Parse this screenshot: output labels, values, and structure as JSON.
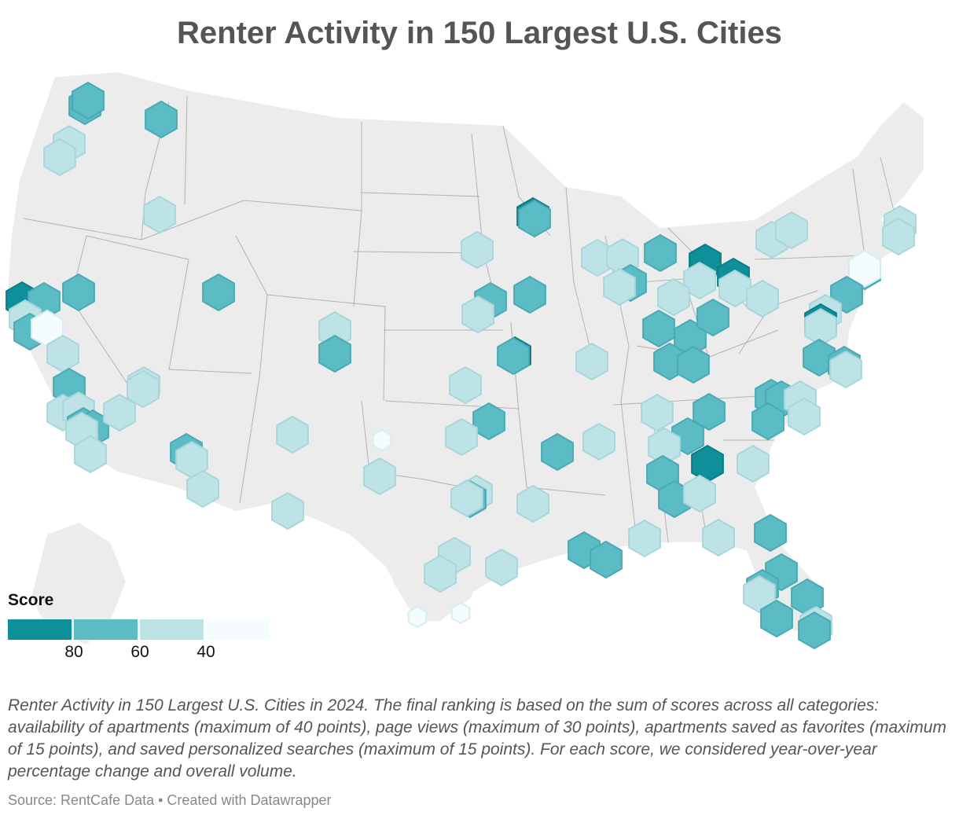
{
  "title": "Renter Activity in 150 Largest U.S. Cities",
  "legend": {
    "title": "Score",
    "bins": [
      {
        "color": "#0e8f99"
      },
      {
        "color": "#5bbcc6"
      },
      {
        "color": "#bee3e6"
      },
      {
        "color": "#f4fcfd"
      }
    ],
    "ticks": [
      "80",
      "60",
      "40"
    ]
  },
  "colors": {
    "land": "#ececec",
    "state_border": "#9a9a9a",
    "hex_dark": "#0e8f99",
    "hex_mid": "#5bbcc6",
    "hex_light": "#bee3e6",
    "hex_pale": "#f4fcfd"
  },
  "description": "Renter Activity in 150 Largest U.S. Cities in 2024. The final ranking is based on the sum of scores across all categories: availability of apartments (maximum of 40 points), page views (maximum of 30 points), apartments saved as favorites (maximum of 15 points), and saved personalized searches (maximum of 15 points). For each score, we considered year-over-year percentage change and overall volume.",
  "source": "Source: RentCafe Data • Created with Datawrapper"
}
